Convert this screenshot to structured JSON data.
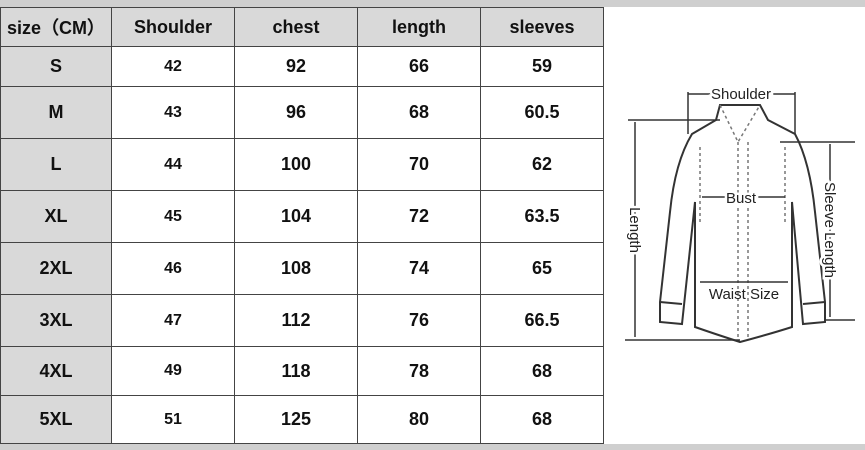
{
  "table": {
    "headers": [
      "size（CM）",
      "Shoulder",
      "chest",
      "length",
      "sleeves"
    ],
    "rows": [
      [
        "S",
        "42",
        "92",
        "66",
        "59"
      ],
      [
        "M",
        "43",
        "96",
        "68",
        "60.5"
      ],
      [
        "L",
        "44",
        "100",
        "70",
        "62"
      ],
      [
        "XL",
        "45",
        "104",
        "72",
        "63.5"
      ],
      [
        "2XL",
        "46",
        "108",
        "74",
        "65"
      ],
      [
        "3XL",
        "47",
        "112",
        "76",
        "66.5"
      ],
      [
        "4XL",
        "49",
        "118",
        "78",
        "68"
      ],
      [
        "5XL",
        "51",
        "125",
        "80",
        "68"
      ]
    ]
  },
  "diagram": {
    "shoulder": "Shoulder",
    "bust": "Bust",
    "waist": "Waist Size",
    "length": "Length",
    "sleeve": "Sleeve Length"
  }
}
